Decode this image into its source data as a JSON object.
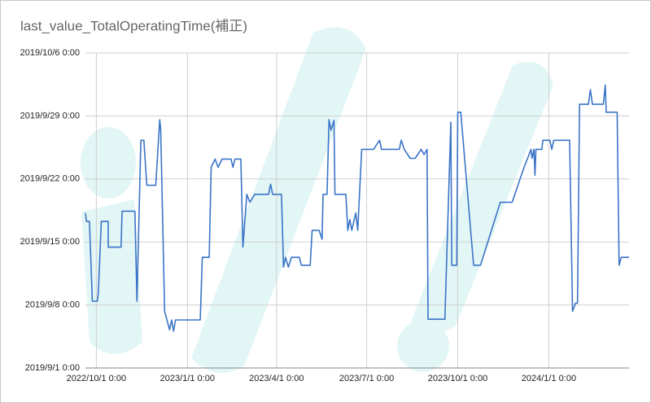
{
  "chart_data": {
    "type": "line",
    "title": "last_value_TotalOperatingTime(補正)",
    "xlim": [
      "2022-09-20",
      "2024-03-22"
    ],
    "xticks": [
      {
        "value": "2022-10-01",
        "label": "2022/10/1 0:00"
      },
      {
        "value": "2023-01-01",
        "label": "2023/1/1 0:00"
      },
      {
        "value": "2023-04-01",
        "label": "2023/4/1 0:00"
      },
      {
        "value": "2023-07-01",
        "label": "2023/7/1 0:00"
      },
      {
        "value": "2023-10-01",
        "label": "2023/10/1 0:00"
      },
      {
        "value": "2024-01-01",
        "label": "2024/1/1 0:00"
      }
    ],
    "ylim": [
      "2019-09-01 00:00",
      "2019-10-06 00:00"
    ],
    "yticks": [
      {
        "value": "2019-09-01 00:00",
        "label": "2019/9/1 0:00"
      },
      {
        "value": "2019-09-08 00:00",
        "label": "2019/9/8 0:00"
      },
      {
        "value": "2019-09-15 00:00",
        "label": "2019/9/15 0:00"
      },
      {
        "value": "2019-09-22 00:00",
        "label": "2019/9/22 0:00"
      },
      {
        "value": "2019-09-29 00:00",
        "label": "2019/9/29 0:00"
      },
      {
        "value": "2019-10-06 00:00",
        "label": "2019/10/6 0:00"
      }
    ],
    "grid": true,
    "x": [
      "2022-09-20",
      "2022-09-21",
      "2022-09-24",
      "2022-09-27",
      "2022-10-02",
      "2022-10-03",
      "2022-10-06",
      "2022-10-13",
      "2022-10-13",
      "2022-10-26",
      "2022-10-27",
      "2022-11-09",
      "2022-11-11",
      "2022-11-15",
      "2022-11-18",
      "2022-11-21",
      "2022-11-30",
      "2022-12-04",
      "2022-12-05",
      "2022-12-09",
      "2022-12-14",
      "2022-12-16",
      "2022-12-18",
      "2022-12-20",
      "2023-01-14",
      "2023-01-16",
      "2023-01-23",
      "2023-01-25",
      "2023-01-29",
      "2023-02-01",
      "2023-02-05",
      "2023-02-14",
      "2023-02-16",
      "2023-02-18",
      "2023-02-24",
      "2023-02-26",
      "2023-03-02",
      "2023-03-05",
      "2023-03-10",
      "2023-03-24",
      "2023-03-26",
      "2023-03-28",
      "2023-04-06",
      "2023-04-08",
      "2023-04-10",
      "2023-04-13",
      "2023-04-16",
      "2023-04-24",
      "2023-04-26",
      "2023-05-05",
      "2023-05-07",
      "2023-05-14",
      "2023-05-17",
      "2023-05-18",
      "2023-05-22",
      "2023-05-24",
      "2023-05-26",
      "2023-05-29",
      "2023-05-30",
      "2023-06-10",
      "2023-06-12",
      "2023-06-14",
      "2023-06-16",
      "2023-06-20",
      "2023-06-22",
      "2023-06-26",
      "2023-07-08",
      "2023-07-14",
      "2023-07-16",
      "2023-08-03",
      "2023-08-05",
      "2023-08-08",
      "2023-08-14",
      "2023-08-19",
      "2023-08-25",
      "2023-08-28",
      "2023-08-31",
      "2023-09-01",
      "2023-09-18",
      "2023-09-24",
      "2023-09-25",
      "2023-09-30",
      "2023-10-01",
      "2023-10-04",
      "2023-10-17",
      "2023-10-24",
      "2023-11-13",
      "2023-11-25",
      "2023-12-07",
      "2023-12-11",
      "2023-12-14",
      "2023-12-15",
      "2023-12-17",
      "2023-12-18",
      "2023-12-19",
      "2023-12-25",
      "2023-12-26",
      "2024-01-02",
      "2024-01-04",
      "2024-01-06",
      "2024-01-22",
      "2024-01-25",
      "2024-01-28",
      "2024-01-30",
      "2024-02-01",
      "2024-02-10",
      "2024-02-12",
      "2024-02-14",
      "2024-02-25",
      "2024-02-27",
      "2024-02-28",
      "2024-03-10",
      "2024-03-12",
      "2024-03-14",
      "2024-03-22"
    ],
    "series": [
      {
        "color": "#3a74c6",
        "values": [
          "2019-09-18 05:00",
          "2019-09-17 07:00",
          "2019-09-17 07:00",
          "2019-09-08 10:00",
          "2019-09-08 10:00",
          "2019-09-09 07:00",
          "2019-09-17 07:00",
          "2019-09-17 07:00",
          "2019-09-14 10:00",
          "2019-09-14 10:00",
          "2019-09-18 10:00",
          "2019-09-18 10:00",
          "2019-09-08 10:00",
          "2019-09-26 07:00",
          "2019-09-26 07:00",
          "2019-09-21 07:00",
          "2019-09-21 07:00",
          "2019-09-28 14:00",
          "2019-09-27 10:00",
          "2019-09-07 07:00",
          "2019-09-05 06:00",
          "2019-09-06 08:00",
          "2019-09-05 02:00",
          "2019-09-06 08:00",
          "2019-09-06 08:00",
          "2019-09-13 07:00",
          "2019-09-13 07:00",
          "2019-09-23 07:00",
          "2019-09-24 05:00",
          "2019-09-23 07:00",
          "2019-09-24 05:00",
          "2019-09-24 05:00",
          "2019-09-23 07:00",
          "2019-09-24 05:00",
          "2019-09-24 05:00",
          "2019-09-14 10:00",
          "2019-09-20 07:00",
          "2019-09-19 10:00",
          "2019-09-20 07:00",
          "2019-09-20 07:00",
          "2019-09-21 10:00",
          "2019-09-20 07:00",
          "2019-09-20 07:00",
          "2019-09-12 05:00",
          "2019-09-13 07:00",
          "2019-09-12 05:00",
          "2019-09-13 07:00",
          "2019-09-13 07:00",
          "2019-09-12 10:00",
          "2019-09-12 10:00",
          "2019-09-16 07:00",
          "2019-09-16 07:00",
          "2019-09-15 07:00",
          "2019-09-20 07:00",
          "2019-09-20 07:00",
          "2019-09-28 14:00",
          "2019-09-27 10:00",
          "2019-09-28 12:00",
          "2019-09-20 07:00",
          "2019-09-20 07:00",
          "2019-09-16 07:00",
          "2019-09-17 12:00",
          "2019-09-16 07:00",
          "2019-09-18 05:00",
          "2019-09-16 07:00",
          "2019-09-25 07:00",
          "2019-09-25 07:00",
          "2019-09-26 07:00",
          "2019-09-25 07:00",
          "2019-09-25 07:00",
          "2019-09-26 07:00",
          "2019-09-25 07:00",
          "2019-09-24 07:00",
          "2019-09-24 07:00",
          "2019-09-25 07:00",
          "2019-09-24 17:00",
          "2019-09-25 07:00",
          "2019-09-06 10:00",
          "2019-09-06 10:00",
          "2019-09-28 07:00",
          "2019-09-12 10:00",
          "2019-09-12 10:00",
          "2019-09-29 10:00",
          "2019-09-29 10:00",
          "2019-09-12 10:00",
          "2019-09-12 10:00",
          "2019-09-19 10:00",
          "2019-09-19 10:00",
          "2019-09-23 07:00",
          "2019-09-24 10:00",
          "2019-09-25 07:00",
          "2019-09-24 07:00",
          "2019-09-25 07:00",
          "2019-09-22 10:00",
          "2019-09-25 07:00",
          "2019-09-25 07:00",
          "2019-09-26 07:00",
          "2019-09-26 07:00",
          "2019-09-25 07:00",
          "2019-09-26 07:00",
          "2019-09-26 07:00",
          "2019-09-07 07:00",
          "2019-09-08 05:00",
          "2019-09-08 05:00",
          "2019-09-30 07:00",
          "2019-09-30 07:00",
          "2019-10-01 22:00",
          "2019-09-30 07:00",
          "2019-09-30 07:00",
          "2019-10-02 10:00",
          "2019-09-29 10:00",
          "2019-09-29 10:00",
          "2019-09-12 10:00",
          "2019-09-13 07:00",
          "2019-09-13 07:00"
        ]
      }
    ]
  }
}
